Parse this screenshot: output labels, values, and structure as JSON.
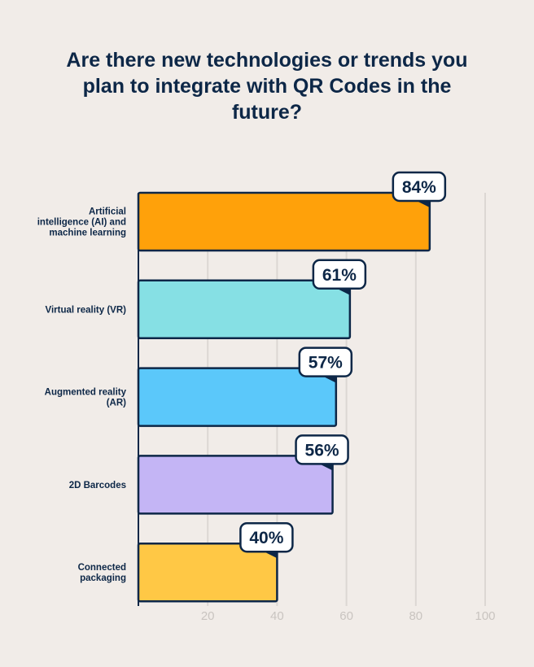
{
  "chart_data": {
    "type": "bar",
    "orientation": "horizontal",
    "title": "Are there new technologies or trends you plan to integrate with QR Codes in the future?",
    "categories": [
      "Artificial intelligence (AI) and machine learning",
      "Virtual reality (VR)",
      "Augmented reality (AR)",
      "2D Barcodes",
      "Connected packaging"
    ],
    "category_lines": [
      [
        "Artificial",
        "intelligence (AI) and",
        "machine learning"
      ],
      [
        "Virtual reality (VR)"
      ],
      [
        "Augmented reality",
        "(AR)"
      ],
      [
        "2D Barcodes"
      ],
      [
        "Connected",
        "packaging"
      ]
    ],
    "values": [
      84,
      61,
      57,
      56,
      40
    ],
    "data_labels": [
      "84%",
      "61%",
      "57%",
      "56%",
      "40%"
    ],
    "colors": [
      "#ffa10a",
      "#86e0e4",
      "#5bc8fa",
      "#c4b5f5",
      "#ffc845"
    ],
    "xlim": [
      0,
      100
    ],
    "xticks": [
      20,
      40,
      60,
      80,
      100
    ],
    "grid": true,
    "xlabel": "",
    "ylabel": ""
  }
}
